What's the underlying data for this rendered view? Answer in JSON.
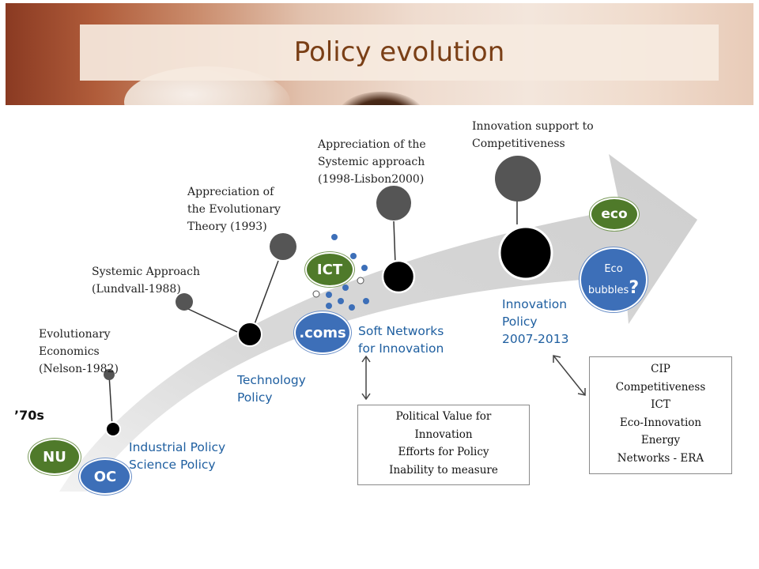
{
  "title": "Policy evolution",
  "labels": {
    "evolutionary": [
      "Evolutionary",
      "Economics",
      "(Nelson-1982)"
    ],
    "systemic": [
      "Systemic Approach",
      "(Lundvall-1988)"
    ],
    "evo_theory": [
      "Appreciation of",
      "the Evolutionary",
      "Theory (1993)"
    ],
    "systemic_app": [
      "Appreciation of the",
      "Systemic approach",
      "(1998-Lisbon2000)"
    ],
    "innov_support": [
      "Innovation support to",
      "Competitiveness"
    ],
    "seventies": "’70s"
  },
  "policies": {
    "industrial": [
      "Industrial Policy",
      "Science Policy"
    ],
    "technology": [
      "Technology",
      "Policy"
    ],
    "soft_networks": [
      "Soft Networks",
      "for Innovation"
    ],
    "innovation": [
      "Innovation",
      "Policy",
      "2007-2013"
    ]
  },
  "badges": {
    "nu": "NU",
    "oc": "OC",
    "ict": "ICT",
    "coms": ".coms",
    "eco": "eco",
    "eco_bubbles": "Eco",
    "eco_bubbles2": "bubbles",
    "eco_q": "?"
  },
  "box_left": [
    "Political Value for",
    "Innovation",
    "Efforts for Policy",
    "Inability to measure"
  ],
  "box_right": [
    "CIP",
    "Competitiveness",
    "ICT",
    "Eco-Innovation",
    "Energy",
    "Networks - ERA"
  ],
  "colors": {
    "title": "#7a3f16",
    "green": "#4f7a2a",
    "blue": "#3d6fb8",
    "policy_text": "#1f5fa0"
  }
}
